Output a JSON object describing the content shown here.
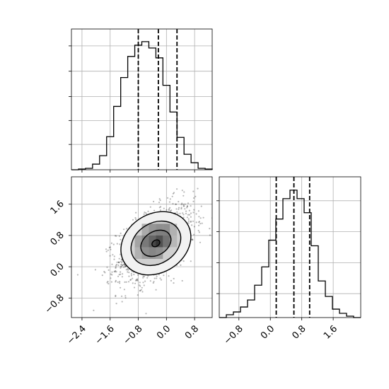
{
  "chart_data": [
    {
      "type": "histogram",
      "panel": "top-left",
      "variable": "x",
      "xlim": [
        -2.7,
        1.3
      ],
      "ylim": [
        0,
        1
      ],
      "grid": true,
      "bin_edges": [
        -2.7,
        -2.5,
        -2.3,
        -2.1,
        -1.9,
        -1.7,
        -1.5,
        -1.3,
        -1.1,
        -0.9,
        -0.7,
        -0.5,
        -0.3,
        -0.1,
        0.1,
        0.3,
        0.5,
        0.7,
        0.9,
        1.1,
        1.3
      ],
      "counts": [
        0.0,
        0.005,
        0.01,
        0.04,
        0.1,
        0.235,
        0.45,
        0.655,
        0.805,
        0.885,
        0.91,
        0.865,
        0.795,
        0.6,
        0.41,
        0.23,
        0.11,
        0.05,
        0.01,
        0.005
      ],
      "quantiles": [
        -0.8,
        -0.23,
        0.3
      ]
    },
    {
      "type": "histogram",
      "panel": "bottom-right",
      "variable": "y",
      "xlim": [
        -1.3,
        2.3
      ],
      "ylim": [
        0,
        1
      ],
      "grid": true,
      "bin_edges": [
        -1.3,
        -1.12,
        -0.94,
        -0.76,
        -0.58,
        -0.4,
        -0.22,
        -0.04,
        0.14,
        0.32,
        0.5,
        0.68,
        0.86,
        1.04,
        1.22,
        1.4,
        1.58,
        1.76,
        1.94,
        2.12,
        2.3
      ],
      "counts": [
        0.0,
        0.02,
        0.04,
        0.075,
        0.125,
        0.23,
        0.36,
        0.55,
        0.7,
        0.845,
        0.905,
        0.845,
        0.745,
        0.51,
        0.26,
        0.15,
        0.06,
        0.03,
        0.01,
        0.0
      ],
      "quantiles": [
        0.15,
        0.6,
        1.0
      ],
      "xticks": [
        "−0.8",
        "0.0",
        "0.8",
        "1.6"
      ],
      "xtick_values": [
        -0.8,
        0.0,
        0.8,
        1.6
      ]
    },
    {
      "type": "scatter",
      "panel": "bottom-left",
      "variables": [
        "x",
        "y"
      ],
      "xlim": [
        -2.7,
        1.3
      ],
      "ylim": [
        -1.3,
        2.3
      ],
      "grid": true,
      "density_center": [
        -0.3,
        0.6
      ],
      "correlation": 0.5,
      "xticks": [
        "−2.4",
        "−1.6",
        "−0.8",
        "0.0",
        "0.8"
      ],
      "xtick_values": [
        -2.4,
        -1.6,
        -0.8,
        0.0,
        0.8
      ],
      "yticks": [
        "−0.8",
        "0.0",
        "0.8",
        "1.6"
      ],
      "ytick_values": [
        -0.8,
        0.0,
        0.8,
        1.6
      ],
      "histogram_cells": [
        {
          "x": [
            -0.9,
            -0.7
          ],
          "y": [
            0.2,
            0.5
          ],
          "shade": 0.35
        },
        {
          "x": [
            -0.9,
            -0.7
          ],
          "y": [
            0.5,
            0.8
          ],
          "shade": 0.45
        },
        {
          "x": [
            -0.7,
            -0.5
          ],
          "y": [
            0.2,
            0.5
          ],
          "shade": 0.5
        },
        {
          "x": [
            -0.7,
            -0.5
          ],
          "y": [
            0.5,
            0.8
          ],
          "shade": 0.65
        },
        {
          "x": [
            -0.7,
            -0.5
          ],
          "y": [
            0.8,
            1.1
          ],
          "shade": 0.4
        },
        {
          "x": [
            -0.5,
            -0.3
          ],
          "y": [
            0.2,
            0.5
          ],
          "shade": 0.55
        },
        {
          "x": [
            -0.5,
            -0.3
          ],
          "y": [
            0.5,
            0.8
          ],
          "shade": 0.8
        },
        {
          "x": [
            -0.5,
            -0.3
          ],
          "y": [
            0.8,
            1.1
          ],
          "shade": 0.55
        },
        {
          "x": [
            -0.3,
            -0.1
          ],
          "y": [
            0.2,
            0.5
          ],
          "shade": 0.5
        },
        {
          "x": [
            -0.3,
            -0.1
          ],
          "y": [
            0.5,
            0.8
          ],
          "shade": 0.95
        },
        {
          "x": [
            -0.3,
            -0.1
          ],
          "y": [
            0.8,
            1.1
          ],
          "shade": 0.6
        },
        {
          "x": [
            -0.1,
            0.1
          ],
          "y": [
            0.5,
            0.8
          ],
          "shade": 0.7
        },
        {
          "x": [
            -0.1,
            0.1
          ],
          "y": [
            0.8,
            1.1
          ],
          "shade": 0.6
        },
        {
          "x": [
            0.1,
            0.3
          ],
          "y": [
            0.8,
            1.1
          ],
          "shade": 0.35
        },
        {
          "x": [
            0.1,
            0.3
          ],
          "y": [
            0.5,
            0.8
          ],
          "shade": 0.3
        }
      ],
      "contours": [
        {
          "level": "outer",
          "cx": -0.3,
          "cy": 0.6,
          "rx": 1.05,
          "ry": 0.75,
          "angle": 32
        },
        {
          "level": "middle",
          "cx": -0.3,
          "cy": 0.6,
          "rx": 0.75,
          "ry": 0.52,
          "angle": 32
        },
        {
          "level": "inner",
          "cx": -0.3,
          "cy": 0.6,
          "rx": 0.46,
          "ry": 0.3,
          "angle": 32
        },
        {
          "level": "core",
          "cx": -0.3,
          "cy": 0.6,
          "rx": 0.12,
          "ry": 0.08,
          "angle": 32
        }
      ]
    }
  ]
}
